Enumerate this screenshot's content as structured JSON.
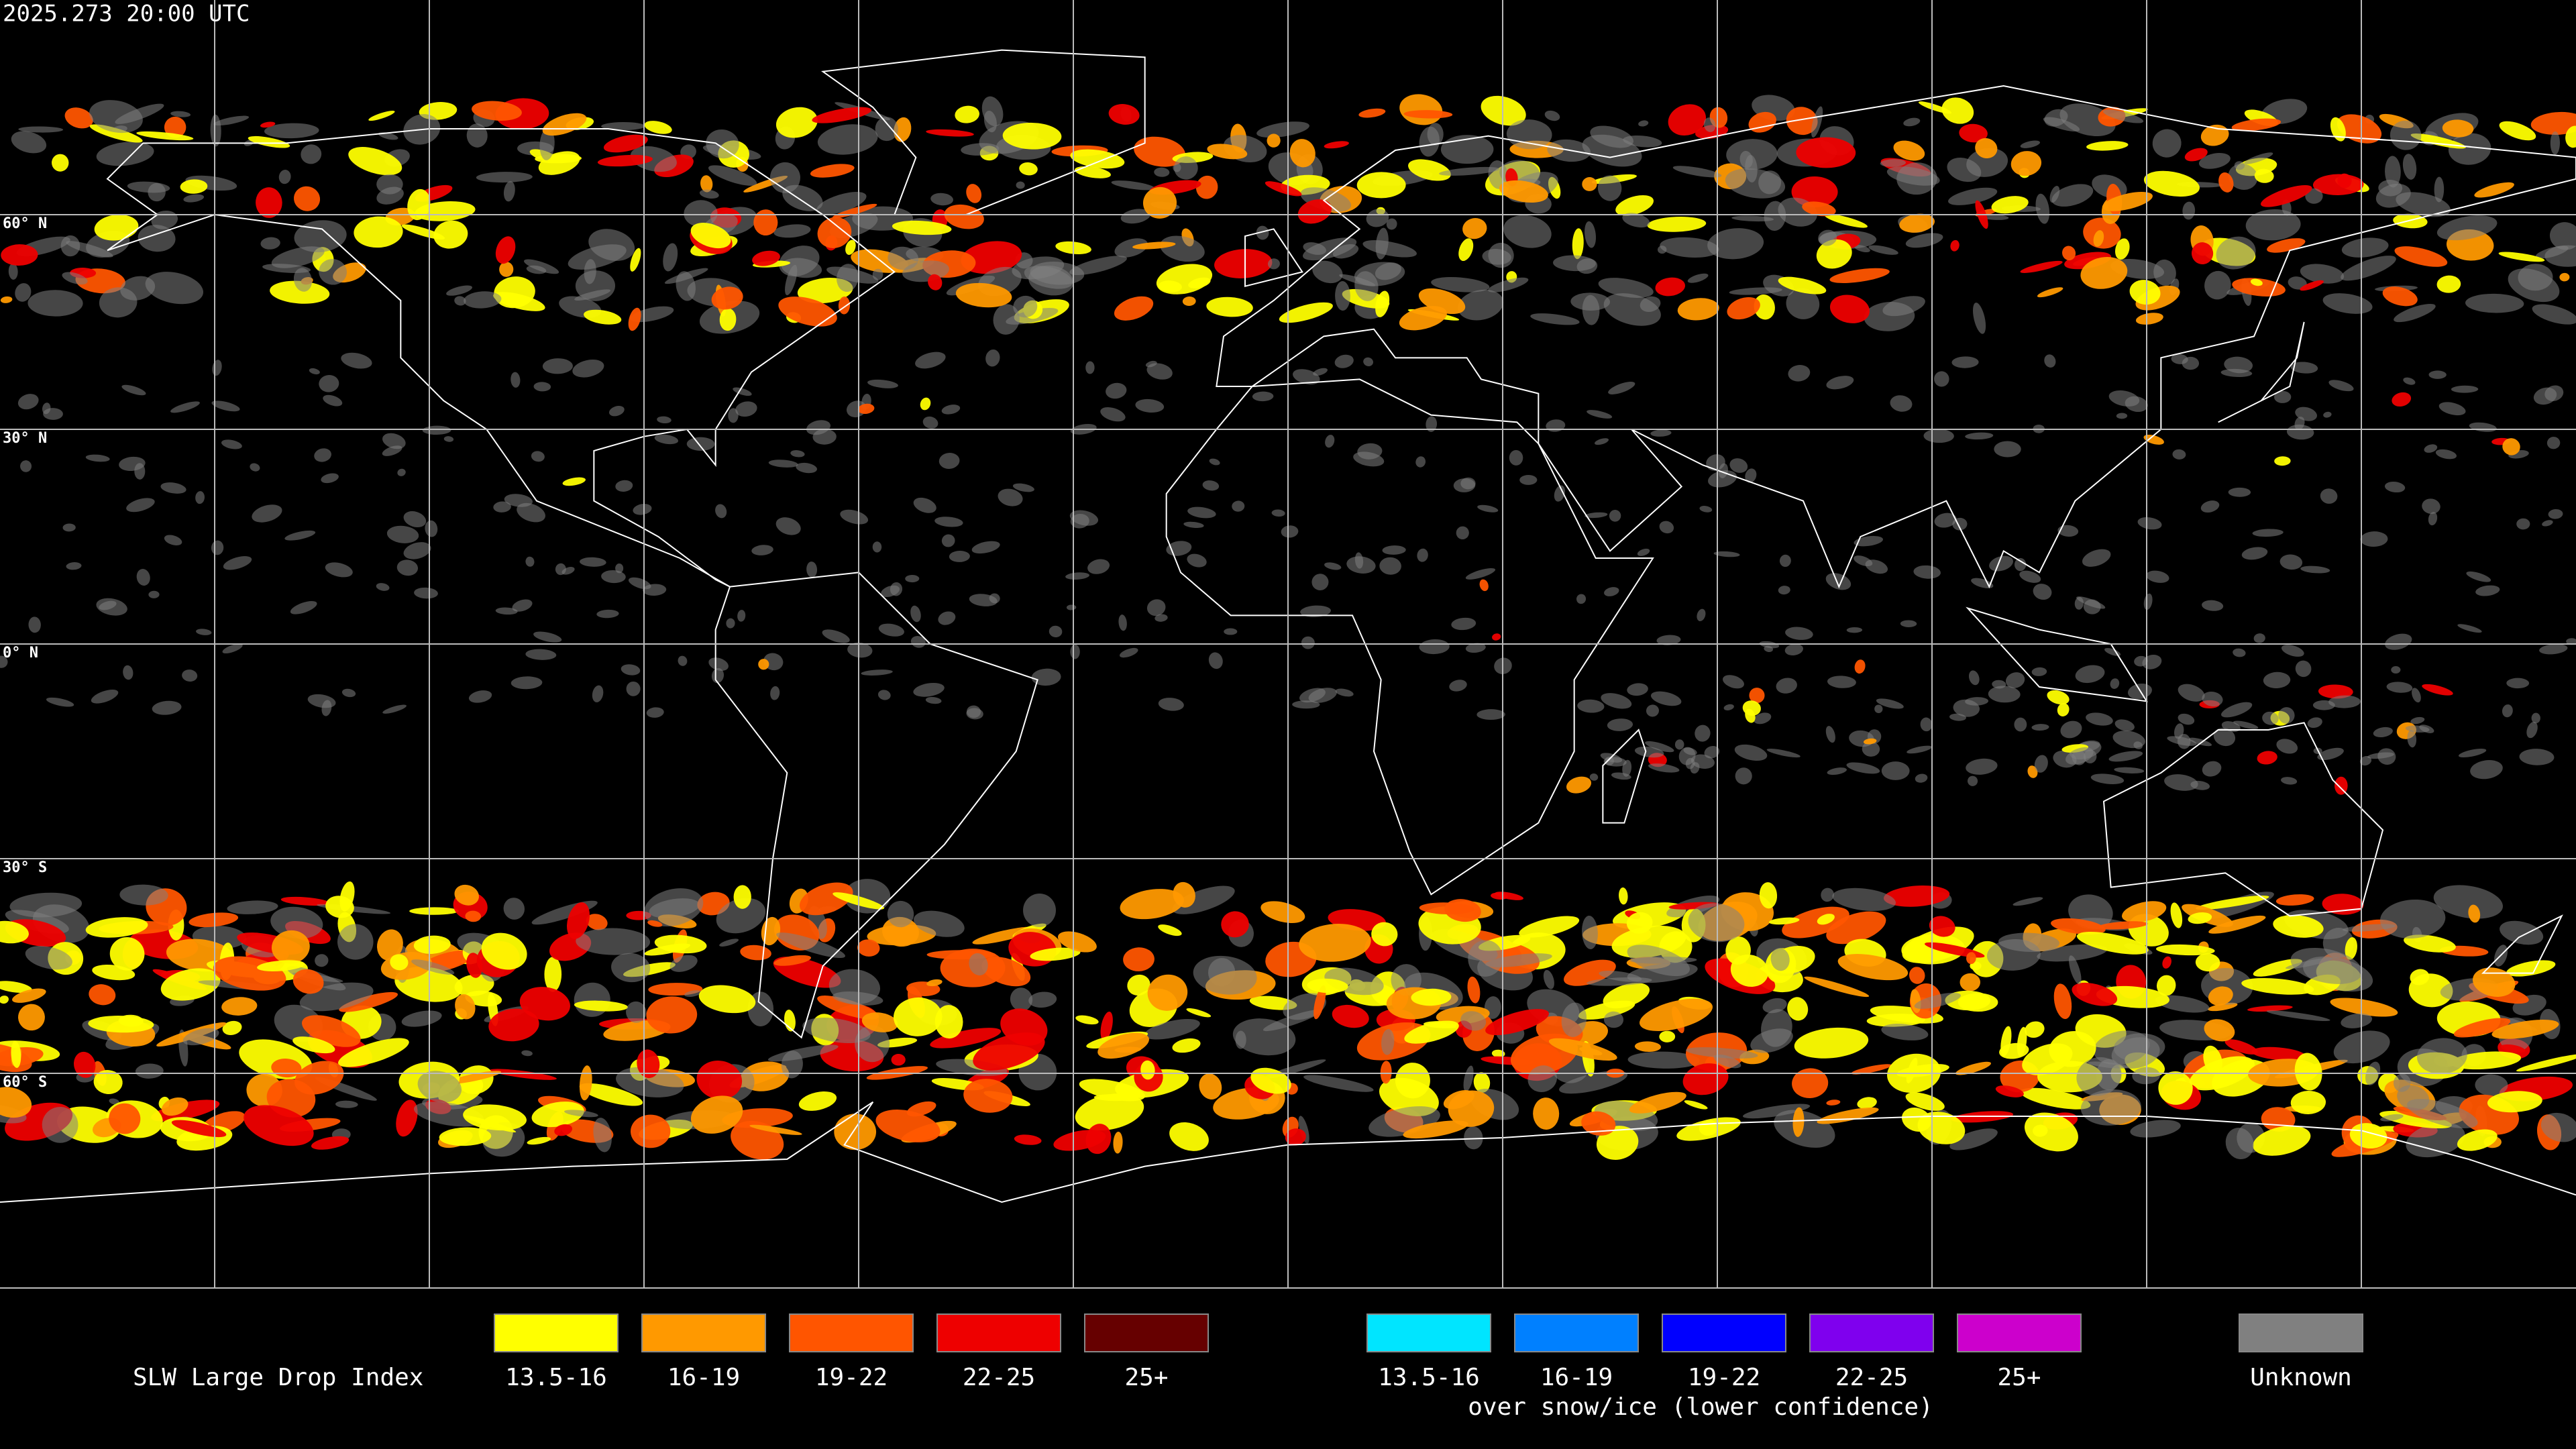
{
  "header": {
    "timestamp": "2025.273 20:00 UTC"
  },
  "map": {
    "lat_labels": [
      "60° N",
      "30° N",
      "0° N",
      "30° S",
      "60° S"
    ]
  },
  "legend": {
    "title": "SLW Large Drop Index",
    "groups": [
      {
        "items": [
          {
            "label": "13.5-16",
            "color": "#ffff00"
          },
          {
            "label": "16-19",
            "color": "#ff9900"
          },
          {
            "label": "19-22",
            "color": "#ff5500"
          },
          {
            "label": "22-25",
            "color": "#ee0000"
          },
          {
            "label": "25+",
            "color": "#660000"
          }
        ]
      },
      {
        "items": [
          {
            "label": "13.5-16",
            "color": "#00e5ff"
          },
          {
            "label": "16-19",
            "color": "#0080ff"
          },
          {
            "label": "19-22",
            "color": "#0000ff"
          },
          {
            "label": "22-25",
            "color": "#7f00ee"
          },
          {
            "label": "25+",
            "color": "#cc00cc"
          }
        ]
      }
    ],
    "note": "over snow/ice (lower confidence)",
    "unknown": {
      "label": "Unknown",
      "color": "#808080"
    }
  }
}
